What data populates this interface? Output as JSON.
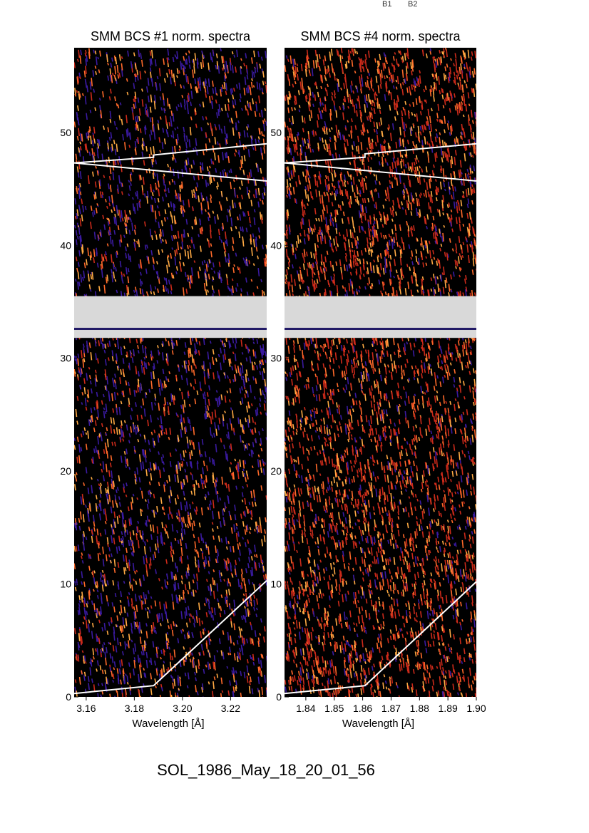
{
  "header": {
    "labels": [
      "B1",
      "B2"
    ]
  },
  "footer": {
    "event_id": "SOL_1986_May_18_20_01_56"
  },
  "colors": {
    "background": "#000000",
    "gap_fill": "#d9d9d9",
    "noise_colors": [
      "#1a0a40",
      "#3a1aa0",
      "#cc2a1a",
      "#ff6a2a",
      "#ffaa44"
    ],
    "overlay_line": "#ffffff"
  },
  "chart_data": [
    {
      "type": "heatmap",
      "title": "SMM BCS #1 norm. spectra",
      "xlabel": "Wavelength [Å]",
      "ylabel": "",
      "xlim": [
        3.155,
        3.235
      ],
      "ylim": [
        0,
        57.5
      ],
      "x_ticks": [
        3.16,
        3.18,
        3.2,
        3.22
      ],
      "x_tick_labels": [
        "3.16",
        "3.18",
        "3.20",
        "3.22"
      ],
      "y_ticks": [
        0,
        10,
        20,
        30,
        40,
        50
      ],
      "y_tick_labels": [
        "0",
        "10",
        "20",
        "30",
        "40",
        "50"
      ],
      "data_gap": [
        31.8,
        35.5
      ],
      "gap_stripe": 32.6,
      "overlay_lines": [
        [
          [
            3.155,
            0.3
          ],
          [
            3.188,
            1.0
          ],
          [
            3.235,
            10.3
          ]
        ],
        [
          [
            3.155,
            47.3
          ],
          [
            3.188,
            47.8
          ],
          [
            3.188,
            48.0
          ],
          [
            3.235,
            49.0
          ]
        ],
        [
          [
            3.155,
            47.3
          ],
          [
            3.235,
            45.7
          ]
        ]
      ]
    },
    {
      "type": "heatmap",
      "title": "SMM BCS #4 norm. spectra",
      "xlabel": "Wavelength [Å]",
      "ylabel": "",
      "xlim": [
        1.8325,
        1.9
      ],
      "ylim": [
        0,
        57.5
      ],
      "x_ticks": [
        1.84,
        1.85,
        1.86,
        1.87,
        1.88,
        1.89,
        1.9
      ],
      "x_tick_labels": [
        "1.84",
        "1.85",
        "1.86",
        "1.87",
        "1.88",
        "1.89",
        "1.90"
      ],
      "y_ticks": [
        0,
        10,
        20,
        30,
        40,
        50
      ],
      "y_tick_labels": [
        "0",
        "10",
        "20",
        "30",
        "40",
        "50"
      ],
      "data_gap": [
        31.8,
        35.5
      ],
      "gap_stripe": 32.6,
      "overlay_lines": [
        [
          [
            1.8325,
            0.3
          ],
          [
            1.8608,
            1.0
          ],
          [
            1.9,
            10.2
          ]
        ],
        [
          [
            1.8325,
            47.3
          ],
          [
            1.8608,
            47.8
          ],
          [
            1.8608,
            48.1
          ],
          [
            1.9,
            49.0
          ]
        ],
        [
          [
            1.8325,
            47.3
          ],
          [
            1.9,
            45.7
          ]
        ]
      ]
    }
  ]
}
